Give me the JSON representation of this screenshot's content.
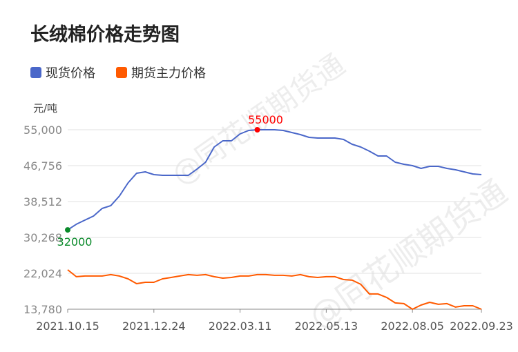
{
  "chart_data": {
    "type": "line",
    "title": "长绒棉价格走势图",
    "ylabel": "元/吨",
    "ylim": [
      13780,
      55000
    ],
    "yticks": [
      "13,780",
      "22,024",
      "30,268",
      "38,512",
      "46,756",
      "55,000"
    ],
    "ytick_values": [
      13780,
      22024,
      30268,
      38512,
      46756,
      55000
    ],
    "xtick_labels": [
      "2021.10.15",
      "2021.12.24",
      "2022.03.11",
      "2022.05.13",
      "2022.08.05",
      "2022.09.23"
    ],
    "xtick_indices": [
      0,
      10,
      20,
      30,
      40,
      48
    ],
    "grid": true,
    "legend_position": "top-left",
    "series": [
      {
        "name": "现货价格",
        "color": "#4a67c9",
        "values": [
          32000,
          33290,
          34240,
          35190,
          36930,
          37570,
          39780,
          42800,
          45010,
          45330,
          44700,
          44540,
          44540,
          44540,
          44540,
          45970,
          47550,
          51040,
          52460,
          52460,
          54050,
          54840,
          55000,
          55000,
          55000,
          54840,
          54370,
          53890,
          53260,
          53100,
          53100,
          53100,
          52780,
          51670,
          51040,
          50090,
          48980,
          48980,
          47550,
          47080,
          46760,
          46120,
          46600,
          46600,
          46120,
          45800,
          45330,
          44860,
          44700
        ]
      },
      {
        "name": "期货主力价格",
        "color": "#ff5a00",
        "values": [
          22825,
          21240,
          21400,
          21400,
          21400,
          21720,
          21400,
          20760,
          19650,
          19970,
          19970,
          20760,
          21080,
          21400,
          21720,
          21560,
          21720,
          21240,
          20920,
          21080,
          21400,
          21400,
          21720,
          21720,
          21560,
          21560,
          21400,
          21720,
          21240,
          21080,
          21240,
          21240,
          20600,
          20450,
          19500,
          17280,
          17280,
          16490,
          15220,
          15060,
          13780,
          14730,
          15370,
          14900,
          15060,
          14270,
          14580,
          14580,
          13780
        ]
      }
    ],
    "annotations": [
      {
        "label": "55000",
        "series": 0,
        "index": 22,
        "color": "#ff0000"
      },
      {
        "label": "32000",
        "series": 0,
        "index": 0,
        "color": "#0a8a2a"
      }
    ]
  },
  "watermark": "@同花顺期货通"
}
